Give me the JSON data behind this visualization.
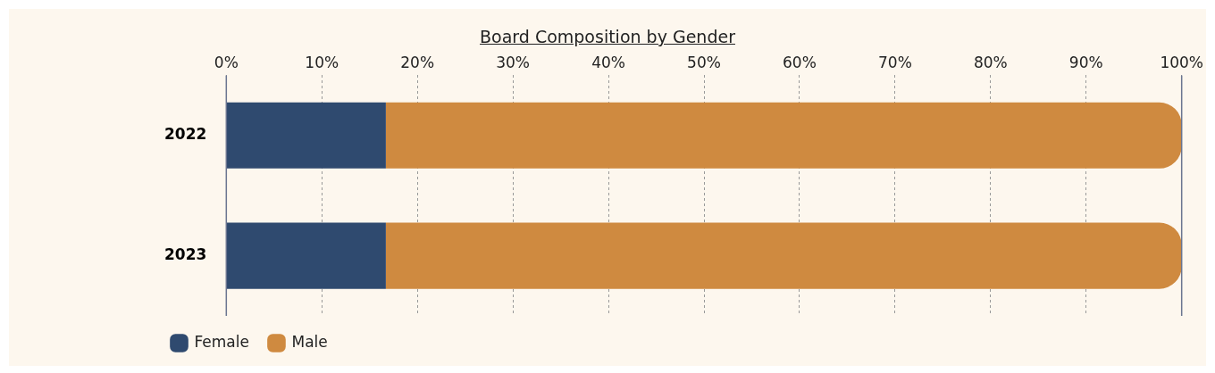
{
  "chart_data": {
    "type": "bar",
    "title": "Board Composition by Gender",
    "orientation": "horizontal",
    "stacked": true,
    "categories": [
      "2022",
      "2023"
    ],
    "series": [
      {
        "name": "Female",
        "color": "#2f4a6f",
        "values": [
          16.7,
          16.7
        ]
      },
      {
        "name": "Male",
        "color": "#cf8a40",
        "values": [
          83.3,
          83.3
        ]
      }
    ],
    "xlim": [
      0,
      100
    ],
    "xticks": [
      {
        "value": 0,
        "label": "0%"
      },
      {
        "value": 10,
        "label": "10%"
      },
      {
        "value": 20,
        "label": "20%"
      },
      {
        "value": 30,
        "label": "30%"
      },
      {
        "value": 40,
        "label": "40%"
      },
      {
        "value": 50,
        "label": "50%"
      },
      {
        "value": 60,
        "label": "60%"
      },
      {
        "value": 70,
        "label": "70%"
      },
      {
        "value": 80,
        "label": "80%"
      },
      {
        "value": 90,
        "label": "90%"
      },
      {
        "value": 100,
        "label": "100%"
      }
    ],
    "grid": "x",
    "legend": "bottom left"
  }
}
